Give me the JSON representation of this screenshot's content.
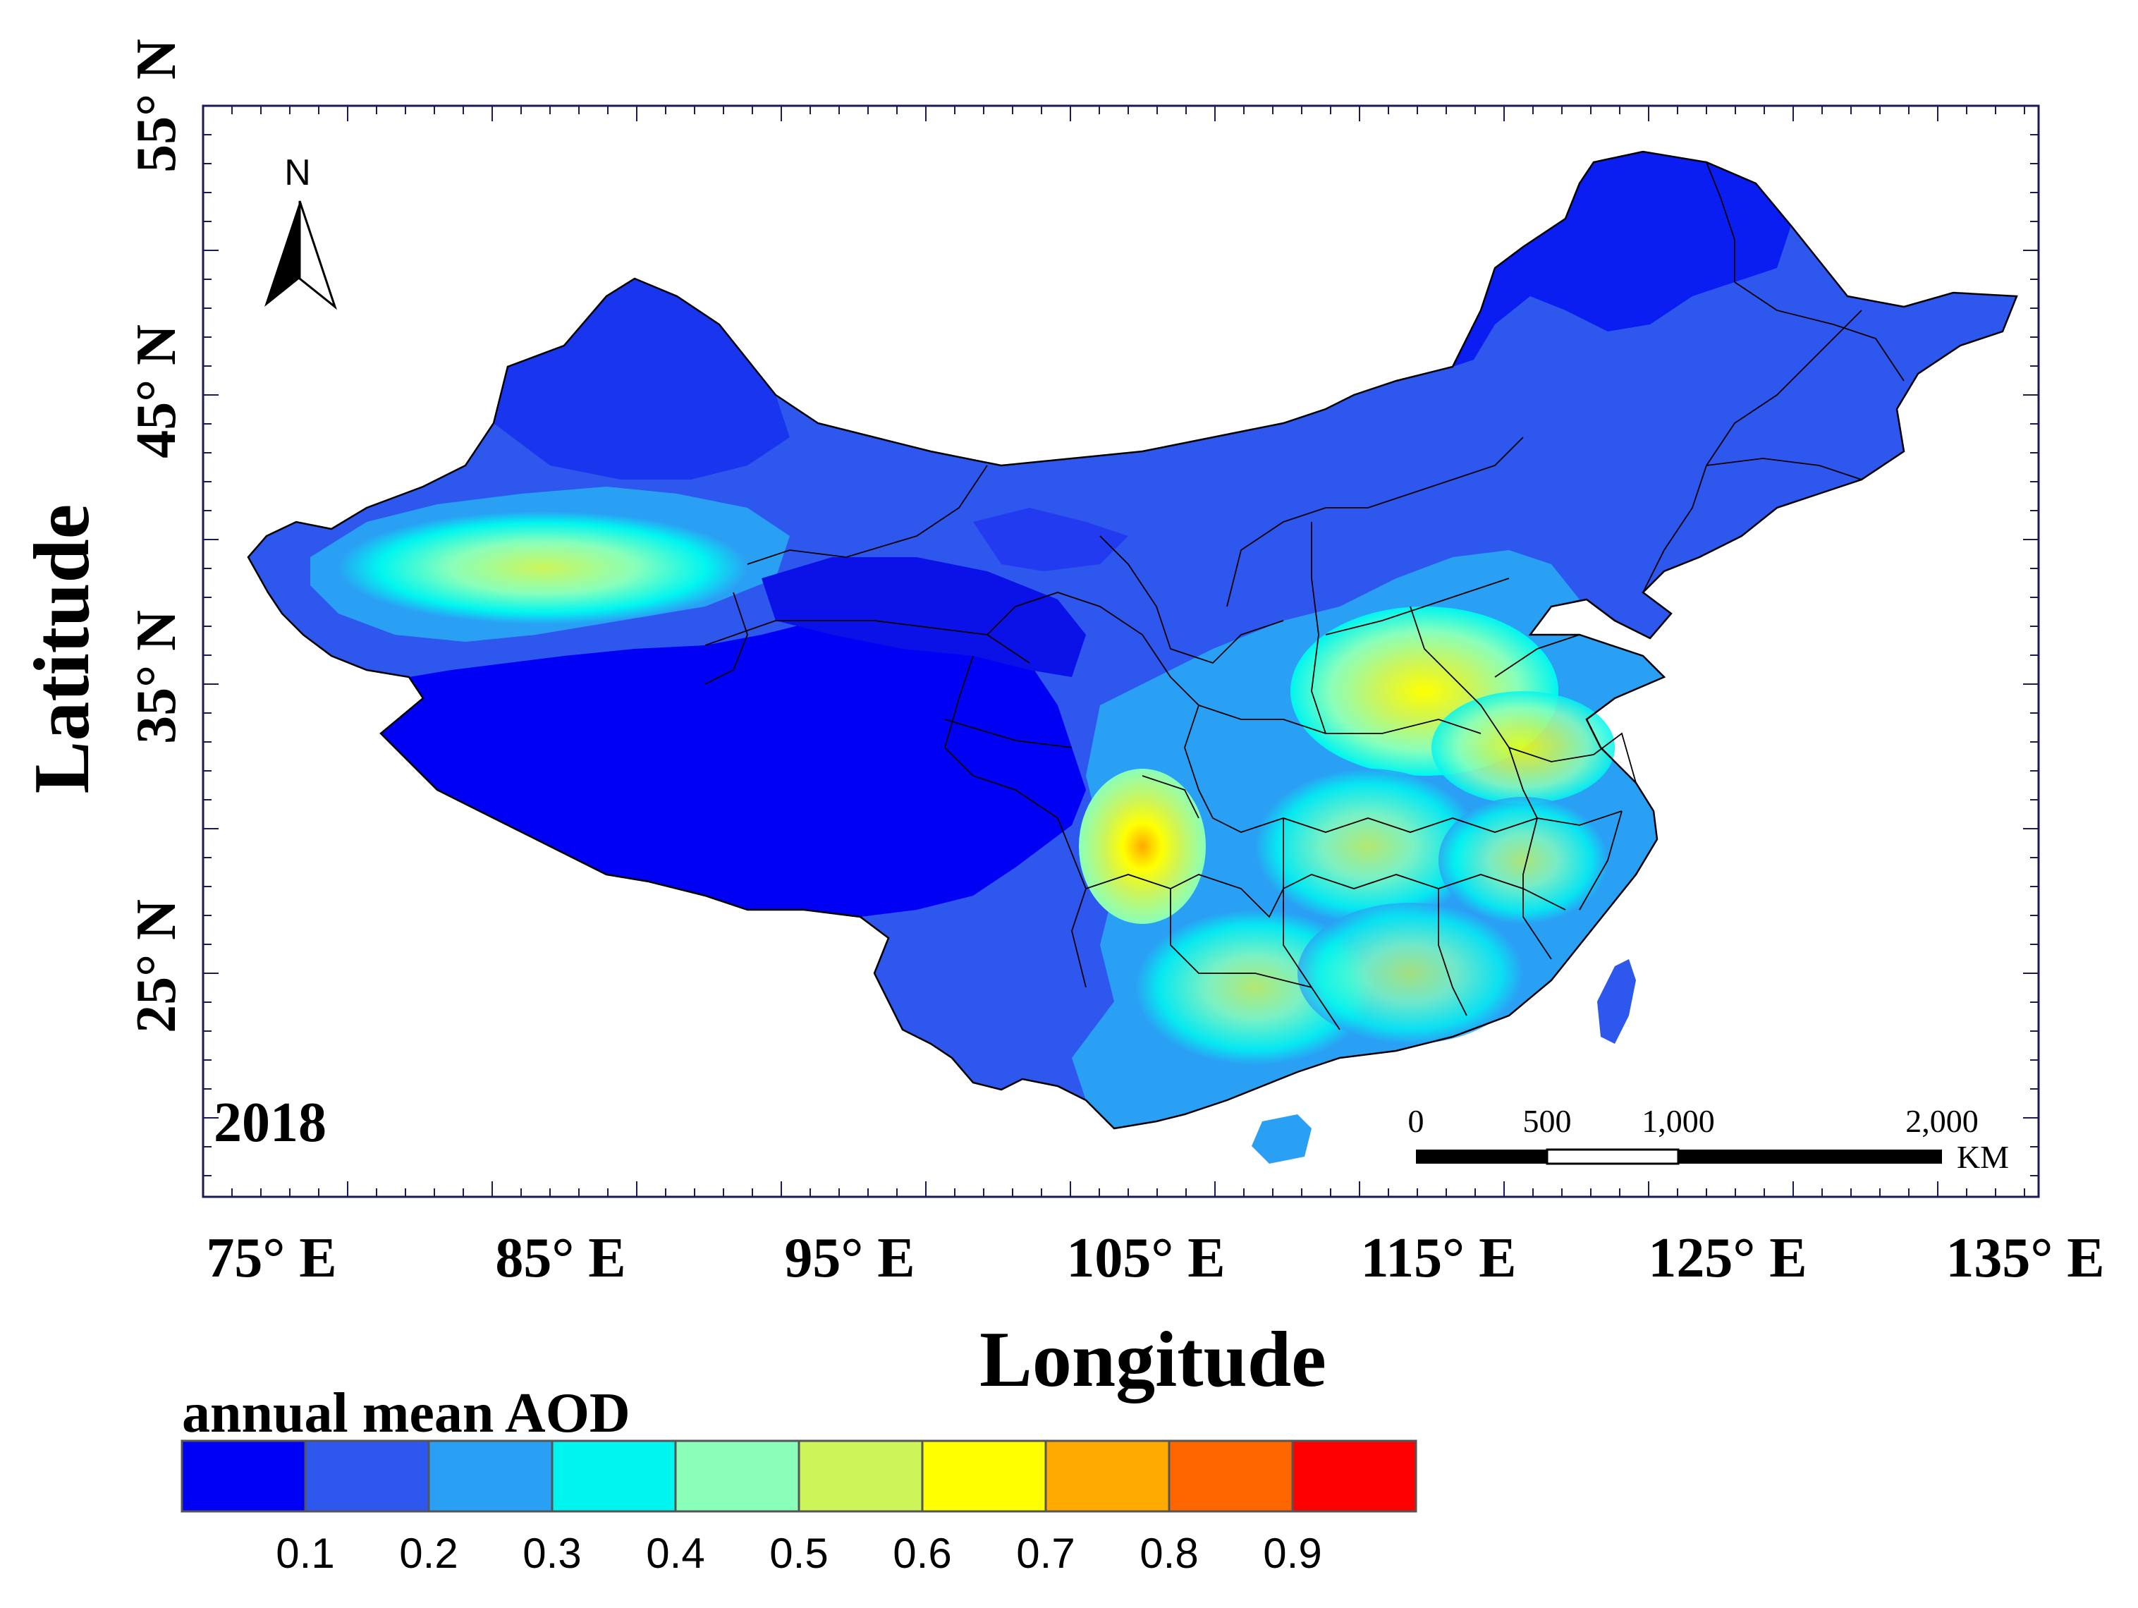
{
  "map": {
    "year_label": "2018",
    "north_arrow_label": "N",
    "x_axis_title": "Longitude",
    "y_axis_title": "Latitude",
    "lon_ticks": [
      "75° E",
      "85° E",
      "95° E",
      "105° E",
      "115° E",
      "125° E",
      "135° E"
    ],
    "lat_ticks": [
      "55° N",
      "45° N",
      "35° N",
      "25° N"
    ],
    "scale_bar": {
      "labels": [
        "0",
        "500",
        "1,000",
        "2,000"
      ],
      "unit": "KM"
    }
  },
  "legend": {
    "title": "annual mean AOD",
    "colors": [
      "#0000f5",
      "#2e57ee",
      "#2aa0f5",
      "#00f5f0",
      "#8affba",
      "#ccf55a",
      "#ffff00",
      "#ffaa00",
      "#ff6600",
      "#ff0000"
    ],
    "tick_labels": [
      "0.1",
      "0.2",
      "0.3",
      "0.4",
      "0.5",
      "0.6",
      "0.7",
      "0.8",
      "0.9"
    ]
  }
}
